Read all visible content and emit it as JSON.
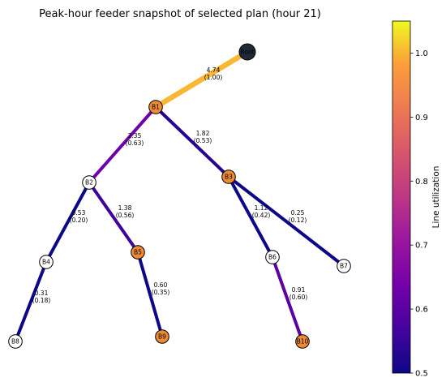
{
  "title": "Peak-hour feeder snapshot of selected plan (hour 21)",
  "colorbar": {
    "label": "Line utilization",
    "min": 0.5,
    "max": 1.05,
    "ticks": [
      "0.5",
      "0.6",
      "0.7",
      "0.8",
      "0.9",
      "1.0"
    ],
    "colormap": "plasma"
  },
  "node_colors": {
    "root": "#1f2a36",
    "highlighted": "#ee8a36",
    "normal": "#ffffff"
  },
  "nodes": [
    {
      "id": "Root",
      "style": "root"
    },
    {
      "id": "B1",
      "style": "highlighted"
    },
    {
      "id": "B2",
      "style": "normal"
    },
    {
      "id": "B3",
      "style": "highlighted"
    },
    {
      "id": "B4",
      "style": "normal"
    },
    {
      "id": "B5",
      "style": "highlighted"
    },
    {
      "id": "B6",
      "style": "normal"
    },
    {
      "id": "B7",
      "style": "normal"
    },
    {
      "id": "B8",
      "style": "normal"
    },
    {
      "id": "B9",
      "style": "highlighted"
    },
    {
      "id": "B10",
      "style": "highlighted"
    }
  ],
  "edges": [
    {
      "from": "Root",
      "to": "B1",
      "flow": "4.74",
      "utilization_label": "(1.00)",
      "utilization": 1.0
    },
    {
      "from": "B1",
      "to": "B2",
      "flow": "2.35",
      "utilization_label": "(0.63)",
      "utilization": 0.63
    },
    {
      "from": "B1",
      "to": "B3",
      "flow": "1.82",
      "utilization_label": "(0.53)",
      "utilization": 0.53
    },
    {
      "from": "B2",
      "to": "B4",
      "flow": "0.53",
      "utilization_label": "(0.20)",
      "utilization": 0.2
    },
    {
      "from": "B2",
      "to": "B5",
      "flow": "1.38",
      "utilization_label": "(0.56)",
      "utilization": 0.56
    },
    {
      "from": "B3",
      "to": "B6",
      "flow": "1.12",
      "utilization_label": "(0.42)",
      "utilization": 0.42
    },
    {
      "from": "B3",
      "to": "B7",
      "flow": "0.25",
      "utilization_label": "(0.12)",
      "utilization": 0.12
    },
    {
      "from": "B4",
      "to": "B8",
      "flow": "0.31",
      "utilization_label": "(0.18)",
      "utilization": 0.18
    },
    {
      "from": "B5",
      "to": "B9",
      "flow": "0.60",
      "utilization_label": "(0.35)",
      "utilization": 0.35
    },
    {
      "from": "B6",
      "to": "B10",
      "flow": "0.91",
      "utilization_label": "(0.60)",
      "utilization": 0.6
    }
  ]
}
